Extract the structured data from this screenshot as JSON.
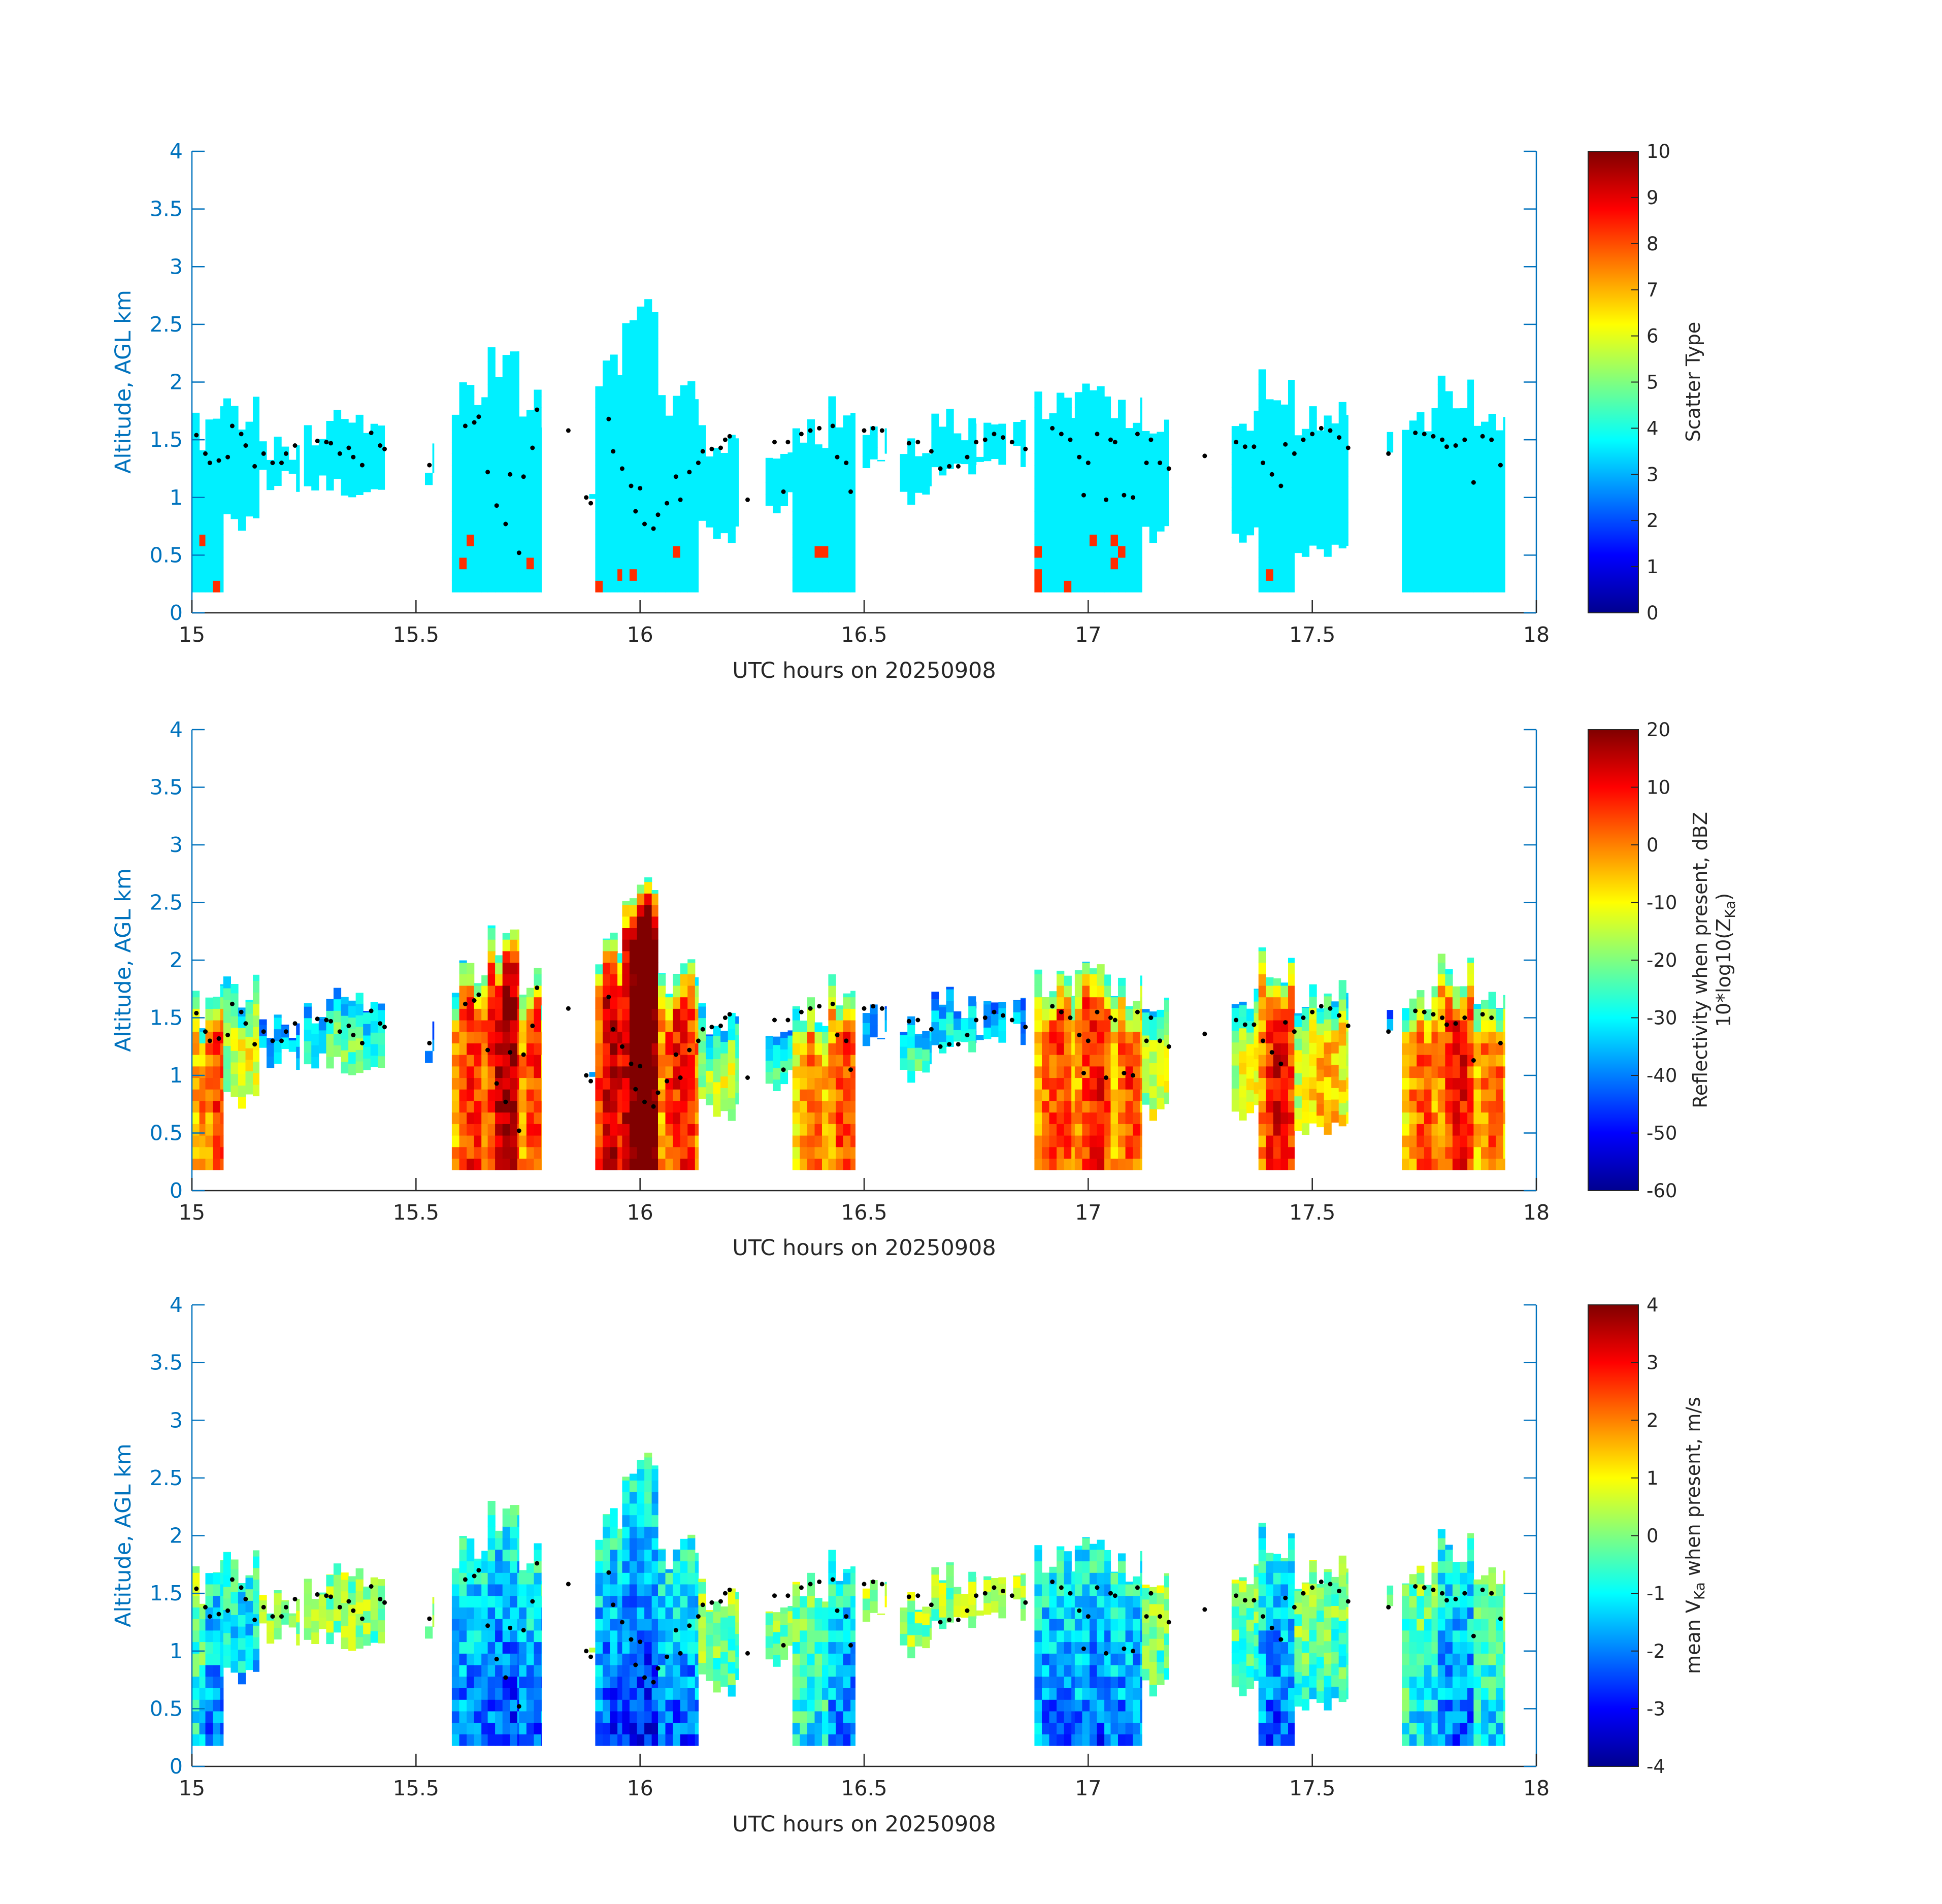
{
  "chart_data": [
    {
      "type": "heatmap",
      "xlabel": "UTC hours on 20250908",
      "ylabel": "Altitude, AGL km",
      "xlim": [
        15,
        18
      ],
      "ylim": [
        0,
        4
      ],
      "xticks": [
        "15",
        "15.5",
        "16",
        "16.5",
        "17",
        "17.5",
        "18"
      ],
      "yticks": [
        "0",
        "0.5",
        "1",
        "1.5",
        "2",
        "2.5",
        "3",
        "3.5",
        "4"
      ],
      "colorbar": {
        "label_lines": [
          "Scatter Type"
        ],
        "clim": [
          0,
          10
        ],
        "ticks": [
          "0",
          "1",
          "2",
          "3",
          "4",
          "5",
          "6",
          "7",
          "8",
          "9",
          "10"
        ]
      },
      "field": "scatter",
      "dominant_value": 3.6,
      "secondary_value": 8.3
    },
    {
      "type": "heatmap",
      "xlabel": "UTC hours on 20250908",
      "ylabel": "Altitude, AGL km",
      "xlim": [
        15,
        18
      ],
      "ylim": [
        0,
        4
      ],
      "xticks": [
        "15",
        "15.5",
        "16",
        "16.5",
        "17",
        "17.5",
        "18"
      ],
      "yticks": [
        "0",
        "0.5",
        "1",
        "1.5",
        "2",
        "2.5",
        "3",
        "3.5",
        "4"
      ],
      "colorbar": {
        "label_lines": [
          "Reflectivity when present, dBZ",
          "10*log10(Z",
          "Ka",
          ")"
        ],
        "clim": [
          -60,
          20
        ],
        "ticks": [
          "-60",
          "-50",
          "-40",
          "-30",
          "-20",
          "-10",
          "0",
          "10",
          "20"
        ]
      },
      "field": "reflectivity"
    },
    {
      "type": "heatmap",
      "xlabel": "UTC hours on 20250908",
      "ylabel": "Altitude, AGL km",
      "xlim": [
        15,
        18
      ],
      "ylim": [
        0,
        4
      ],
      "xticks": [
        "15",
        "15.5",
        "16",
        "16.5",
        "17",
        "17.5",
        "18"
      ],
      "yticks": [
        "0",
        "0.5",
        "1",
        "1.5",
        "2",
        "2.5",
        "3",
        "3.5",
        "4"
      ],
      "colorbar": {
        "label_lines": [
          "mean V",
          "Ka",
          " when present, m/s"
        ],
        "clim": [
          -4,
          4
        ],
        "ticks": [
          "-4",
          "-3",
          "-2",
          "-1",
          "0",
          "1",
          "2",
          "3",
          "4"
        ]
      },
      "field": "velocity"
    }
  ],
  "cloud_columns": [
    {
      "x0": 15.0,
      "x1": 15.03,
      "bottom": 0.18,
      "top": 1.75,
      "c": 1.42
    },
    {
      "x0": 15.03,
      "x1": 15.07,
      "bottom": 0.18,
      "top": 1.95,
      "c": 1.3
    },
    {
      "x0": 15.07,
      "x1": 15.15,
      "bottom": 0.7,
      "top": 1.9,
      "c": 1.4
    },
    {
      "x0": 15.15,
      "x1": 15.24,
      "bottom": 1.05,
      "top": 1.6,
      "c": 1.35
    },
    {
      "x0": 15.25,
      "x1": 15.43,
      "bottom": 1.0,
      "top": 1.8,
      "c": 1.4
    },
    {
      "x0": 15.52,
      "x1": 15.54,
      "bottom": 1.1,
      "top": 1.55,
      "c": 1.3
    },
    {
      "x0": 15.58,
      "x1": 15.66,
      "bottom": 0.18,
      "top": 2.0,
      "c": 1.5
    },
    {
      "x0": 15.66,
      "x1": 15.73,
      "bottom": 0.18,
      "top": 2.38,
      "c": 1.2
    },
    {
      "x0": 15.73,
      "x1": 15.78,
      "bottom": 0.18,
      "top": 1.95,
      "c": 1.3
    },
    {
      "x0": 15.83,
      "x1": 15.85,
      "bottom": 1.5,
      "top": 1.7,
      "c": 1.6
    },
    {
      "x0": 15.87,
      "x1": 15.9,
      "bottom": 0.9,
      "top": 1.15,
      "c": 1.0
    },
    {
      "x0": 15.9,
      "x1": 15.96,
      "bottom": 0.18,
      "top": 2.25,
      "c": 1.3
    },
    {
      "x0": 15.96,
      "x1": 16.04,
      "bottom": 0.18,
      "top": 2.75,
      "c": 1.05
    },
    {
      "x0": 16.04,
      "x1": 16.13,
      "bottom": 0.18,
      "top": 2.05,
      "c": 1.05
    },
    {
      "x0": 16.13,
      "x1": 16.22,
      "bottom": 0.6,
      "top": 1.7,
      "c": 1.4
    },
    {
      "x0": 16.24,
      "x1": 16.26,
      "bottom": 0.95,
      "top": 1.05,
      "c": 1.0
    },
    {
      "x0": 16.28,
      "x1": 16.34,
      "bottom": 0.85,
      "top": 1.65,
      "c": 1.45
    },
    {
      "x0": 16.34,
      "x1": 16.42,
      "bottom": 0.18,
      "top": 1.75,
      "c": 1.55
    },
    {
      "x0": 16.42,
      "x1": 16.48,
      "bottom": 0.18,
      "top": 1.95,
      "c": 1.3
    },
    {
      "x0": 16.48,
      "x1": 16.55,
      "bottom": 1.25,
      "top": 1.65,
      "c": 1.58
    },
    {
      "x0": 16.58,
      "x1": 16.65,
      "bottom": 0.9,
      "top": 1.7,
      "c": 1.45
    },
    {
      "x0": 16.65,
      "x1": 16.75,
      "bottom": 1.15,
      "top": 1.8,
      "c": 1.3
    },
    {
      "x0": 16.75,
      "x1": 16.86,
      "bottom": 1.25,
      "top": 1.68,
      "c": 1.52
    },
    {
      "x0": 16.88,
      "x1": 16.97,
      "bottom": 0.18,
      "top": 1.95,
      "c": 1.55
    },
    {
      "x0": 16.97,
      "x1": 17.05,
      "bottom": 0.18,
      "top": 2.05,
      "c": 1.3
    },
    {
      "x0": 17.05,
      "x1": 17.12,
      "bottom": 0.18,
      "top": 1.92,
      "c": 1.2
    },
    {
      "x0": 17.12,
      "x1": 17.18,
      "bottom": 0.6,
      "top": 1.75,
      "c": 1.35
    },
    {
      "x0": 17.25,
      "x1": 17.27,
      "bottom": 1.3,
      "top": 1.45,
      "c": 1.36
    },
    {
      "x0": 17.32,
      "x1": 17.38,
      "bottom": 0.6,
      "top": 1.85,
      "c": 1.45
    },
    {
      "x0": 17.38,
      "x1": 17.46,
      "bottom": 0.18,
      "top": 2.15,
      "c": 1.2
    },
    {
      "x0": 17.46,
      "x1": 17.58,
      "bottom": 0.45,
      "top": 1.85,
      "c": 1.5
    },
    {
      "x0": 17.65,
      "x1": 17.68,
      "bottom": 1.3,
      "top": 1.6,
      "c": 1.38
    },
    {
      "x0": 17.7,
      "x1": 17.78,
      "bottom": 0.18,
      "top": 1.85,
      "c": 1.5
    },
    {
      "x0": 17.78,
      "x1": 17.86,
      "bottom": 0.18,
      "top": 2.1,
      "c": 1.45
    },
    {
      "x0": 17.86,
      "x1": 17.93,
      "bottom": 0.18,
      "top": 1.82,
      "c": 1.3
    }
  ],
  "black_dots": [
    [
      15.01,
      1.54
    ],
    [
      15.03,
      1.38
    ],
    [
      15.04,
      1.3
    ],
    [
      15.06,
      1.32
    ],
    [
      15.08,
      1.35
    ],
    [
      15.09,
      1.62
    ],
    [
      15.11,
      1.55
    ],
    [
      15.12,
      1.45
    ],
    [
      15.14,
      1.27
    ],
    [
      15.16,
      1.38
    ],
    [
      15.18,
      1.3
    ],
    [
      15.2,
      1.3
    ],
    [
      15.21,
      1.38
    ],
    [
      15.23,
      1.45
    ],
    [
      15.28,
      1.49
    ],
    [
      15.3,
      1.48
    ],
    [
      15.31,
      1.47
    ],
    [
      15.33,
      1.38
    ],
    [
      15.35,
      1.43
    ],
    [
      15.36,
      1.35
    ],
    [
      15.38,
      1.28
    ],
    [
      15.4,
      1.56
    ],
    [
      15.42,
      1.45
    ],
    [
      15.43,
      1.42
    ],
    [
      15.53,
      1.28
    ],
    [
      15.61,
      1.62
    ],
    [
      15.63,
      1.65
    ],
    [
      15.64,
      1.7
    ],
    [
      15.66,
      1.22
    ],
    [
      15.68,
      0.93
    ],
    [
      15.7,
      0.77
    ],
    [
      15.71,
      1.2
    ],
    [
      15.73,
      0.52
    ],
    [
      15.74,
      1.18
    ],
    [
      15.76,
      1.43
    ],
    [
      15.77,
      1.76
    ],
    [
      15.84,
      1.58
    ],
    [
      15.88,
      1.0
    ],
    [
      15.89,
      0.95
    ],
    [
      15.93,
      1.68
    ],
    [
      15.94,
      1.4
    ],
    [
      15.96,
      1.25
    ],
    [
      15.98,
      1.1
    ],
    [
      15.99,
      0.88
    ],
    [
      16.0,
      1.08
    ],
    [
      16.01,
      0.77
    ],
    [
      16.03,
      0.73
    ],
    [
      16.04,
      0.85
    ],
    [
      16.06,
      0.95
    ],
    [
      16.08,
      1.18
    ],
    [
      16.09,
      0.98
    ],
    [
      16.11,
      1.22
    ],
    [
      16.13,
      1.3
    ],
    [
      16.14,
      1.4
    ],
    [
      16.16,
      1.42
    ],
    [
      16.18,
      1.43
    ],
    [
      16.19,
      1.5
    ],
    [
      16.2,
      1.53
    ],
    [
      16.24,
      0.98
    ],
    [
      16.3,
      1.48
    ],
    [
      16.32,
      1.05
    ],
    [
      16.33,
      1.48
    ],
    [
      16.36,
      1.55
    ],
    [
      16.38,
      1.58
    ],
    [
      16.4,
      1.6
    ],
    [
      16.43,
      1.62
    ],
    [
      16.44,
      1.35
    ],
    [
      16.46,
      1.3
    ],
    [
      16.47,
      1.05
    ],
    [
      16.5,
      1.58
    ],
    [
      16.52,
      1.6
    ],
    [
      16.54,
      1.58
    ],
    [
      16.6,
      1.47
    ],
    [
      16.62,
      1.48
    ],
    [
      16.65,
      1.4
    ],
    [
      16.67,
      1.25
    ],
    [
      16.69,
      1.27
    ],
    [
      16.71,
      1.27
    ],
    [
      16.73,
      1.35
    ],
    [
      16.75,
      1.48
    ],
    [
      16.77,
      1.5
    ],
    [
      16.79,
      1.55
    ],
    [
      16.81,
      1.52
    ],
    [
      16.83,
      1.48
    ],
    [
      16.86,
      1.42
    ],
    [
      16.92,
      1.6
    ],
    [
      16.94,
      1.55
    ],
    [
      16.96,
      1.5
    ],
    [
      16.98,
      1.35
    ],
    [
      16.99,
      1.02
    ],
    [
      17.0,
      1.3
    ],
    [
      17.02,
      1.55
    ],
    [
      17.04,
      0.98
    ],
    [
      17.05,
      1.5
    ],
    [
      17.06,
      1.48
    ],
    [
      17.08,
      1.02
    ],
    [
      17.1,
      1.0
    ],
    [
      17.11,
      1.55
    ],
    [
      17.13,
      1.3
    ],
    [
      17.14,
      1.5
    ],
    [
      17.16,
      1.3
    ],
    [
      17.18,
      1.25
    ],
    [
      17.26,
      1.36
    ],
    [
      17.33,
      1.48
    ],
    [
      17.35,
      1.44
    ],
    [
      17.37,
      1.44
    ],
    [
      17.39,
      1.3
    ],
    [
      17.41,
      1.2
    ],
    [
      17.43,
      1.1
    ],
    [
      17.44,
      1.46
    ],
    [
      17.46,
      1.38
    ],
    [
      17.48,
      1.5
    ],
    [
      17.5,
      1.55
    ],
    [
      17.52,
      1.6
    ],
    [
      17.54,
      1.58
    ],
    [
      17.56,
      1.52
    ],
    [
      17.58,
      1.43
    ],
    [
      17.67,
      1.38
    ],
    [
      17.73,
      1.56
    ],
    [
      17.75,
      1.55
    ],
    [
      17.77,
      1.53
    ],
    [
      17.79,
      1.5
    ],
    [
      17.8,
      1.44
    ],
    [
      17.82,
      1.45
    ],
    [
      17.84,
      1.5
    ],
    [
      17.86,
      1.13
    ],
    [
      17.88,
      1.53
    ],
    [
      17.9,
      1.5
    ],
    [
      17.92,
      1.28
    ]
  ],
  "colors": {
    "axis_blue": "#0072BD",
    "text_dark": "#262626",
    "colormap": "jet"
  }
}
